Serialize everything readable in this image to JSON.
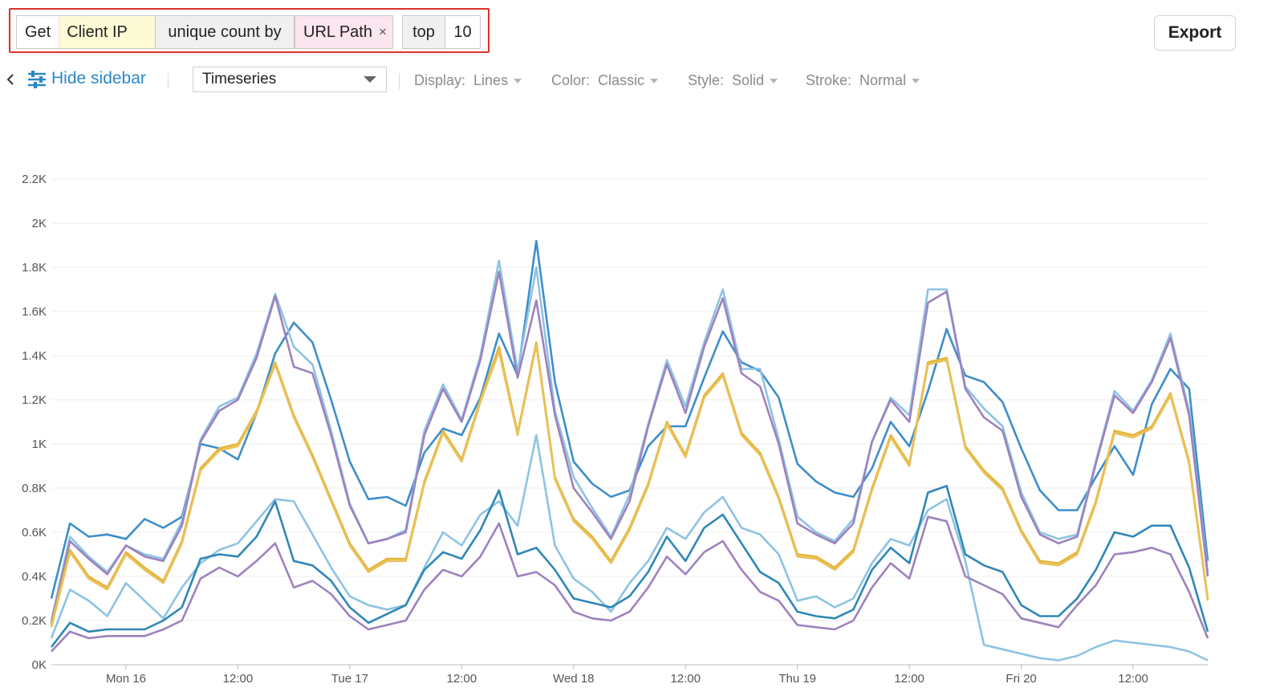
{
  "query": {
    "get_label": "Get",
    "get_value": "Client IP",
    "unique_label": "unique count by",
    "group_by_value": "URL Path",
    "remove_symbol": "×",
    "top_label": "top",
    "top_value": "10"
  },
  "export_label": "Export",
  "toolbar": {
    "hide_sidebar_label": "Hide sidebar",
    "chart_type": "Timeseries",
    "display_label": "Display:",
    "display_value": "Lines",
    "color_label": "Color:",
    "color_value": "Classic",
    "style_label": "Style:",
    "style_value": "Solid",
    "stroke_label": "Stroke:",
    "stroke_value": "Normal"
  },
  "chart_data": {
    "type": "line",
    "ylim": [
      0,
      2200
    ],
    "y_ticks": [
      0,
      200,
      400,
      600,
      800,
      1000,
      1200,
      1400,
      1600,
      1800,
      2000,
      2200
    ],
    "y_tick_labels": [
      "0K",
      "0.2K",
      "0.4K",
      "0.6K",
      "0.8K",
      "1K",
      "1.2K",
      "1.4K",
      "1.6K",
      "1.8K",
      "2K",
      "2.2K"
    ],
    "x_tick_labels": [
      "Mon 16",
      "12:00",
      "Tue 17",
      "12:00",
      "Wed 18",
      "12:00",
      "Thu 19",
      "12:00",
      "Fri 20",
      "12:00"
    ],
    "x_tick_positions": [
      4,
      10,
      16,
      22,
      28,
      34,
      40,
      46,
      52,
      58
    ],
    "grid": true,
    "series": [
      {
        "name": "s1",
        "color": "#3d8ec9",
        "values": [
          300,
          640,
          580,
          590,
          570,
          660,
          620,
          670,
          1000,
          980,
          930,
          1140,
          1410,
          1550,
          1460,
          1200,
          920,
          750,
          760,
          720,
          960,
          1070,
          1040,
          1210,
          1500,
          1310,
          1920,
          1280,
          920,
          820,
          760,
          790,
          990,
          1080,
          1080,
          1300,
          1510,
          1370,
          1330,
          1210,
          910,
          830,
          780,
          760,
          890,
          1100,
          990,
          1240,
          1520,
          1310,
          1280,
          1190,
          980,
          790,
          700,
          700,
          850,
          990,
          860,
          1180,
          1340,
          1250,
          470
        ]
      },
      {
        "name": "s2",
        "color": "#8dc3e3",
        "values": [
          200,
          580,
          490,
          420,
          540,
          500,
          480,
          650,
          1020,
          1170,
          1210,
          1410,
          1680,
          1440,
          1360,
          1060,
          730,
          550,
          570,
          610,
          1060,
          1270,
          1110,
          1400,
          1830,
          1330,
          1800,
          1150,
          850,
          710,
          580,
          770,
          1090,
          1380,
          1170,
          1460,
          1700,
          1340,
          1340,
          1020,
          670,
          600,
          560,
          660,
          1010,
          1210,
          1130,
          1700,
          1700,
          1260,
          1160,
          1080,
          780,
          600,
          570,
          590,
          920,
          1240,
          1150,
          1290,
          1500,
          1150,
          420
        ]
      },
      {
        "name": "s3",
        "color": "#9d82bd",
        "values": [
          190,
          560,
          480,
          410,
          540,
          490,
          470,
          630,
          1010,
          1150,
          1200,
          1390,
          1670,
          1350,
          1320,
          1040,
          720,
          550,
          570,
          600,
          1040,
          1250,
          1100,
          1380,
          1780,
          1300,
          1650,
          1130,
          800,
          690,
          570,
          740,
          1080,
          1360,
          1140,
          1440,
          1660,
          1320,
          1260,
          1000,
          640,
          590,
          550,
          640,
          1010,
          1200,
          1100,
          1640,
          1690,
          1250,
          1120,
          1060,
          760,
          590,
          550,
          580,
          910,
          1220,
          1140,
          1280,
          1480,
          1130,
          400
        ]
      },
      {
        "name": "s4",
        "color": "#e5b53a",
        "values": [
          180,
          520,
          400,
          350,
          510,
          440,
          380,
          560,
          890,
          980,
          1000,
          1150,
          1370,
          1130,
          950,
          750,
          550,
          430,
          480,
          480,
          830,
          1060,
          930,
          1200,
          1440,
          1050,
          1460,
          850,
          660,
          580,
          470,
          620,
          820,
          1100,
          950,
          1220,
          1320,
          1050,
          960,
          760,
          500,
          490,
          440,
          520,
          800,
          1040,
          910,
          1370,
          1390,
          990,
          880,
          800,
          610,
          470,
          460,
          510,
          740,
          1060,
          1040,
          1080,
          1230,
          920,
          300
        ]
      },
      {
        "name": "s5",
        "color": "#e8c15a",
        "values": [
          170,
          510,
          390,
          340,
          500,
          430,
          370,
          550,
          880,
          970,
          990,
          1140,
          1360,
          1120,
          940,
          740,
          540,
          420,
          470,
          470,
          820,
          1050,
          920,
          1190,
          1420,
          1040,
          1450,
          840,
          650,
          570,
          460,
          610,
          810,
          1090,
          940,
          1210,
          1310,
          1040,
          950,
          750,
          490,
          480,
          430,
          510,
          790,
          1030,
          900,
          1360,
          1380,
          980,
          870,
          790,
          600,
          460,
          450,
          500,
          730,
          1050,
          1030,
          1070,
          1220,
          910,
          290
        ]
      },
      {
        "name": "s6",
        "color": "#8dc3e3",
        "values": [
          120,
          340,
          290,
          220,
          370,
          290,
          210,
          350,
          460,
          520,
          550,
          650,
          750,
          740,
          590,
          440,
          310,
          270,
          250,
          270,
          440,
          600,
          540,
          680,
          740,
          630,
          1040,
          540,
          390,
          330,
          240,
          370,
          470,
          620,
          570,
          690,
          760,
          620,
          590,
          500,
          290,
          310,
          260,
          300,
          460,
          570,
          540,
          700,
          750,
          470,
          90,
          70,
          50,
          30,
          20,
          40,
          80,
          110,
          100,
          90,
          80,
          60,
          20
        ]
      },
      {
        "name": "s7",
        "color": "#2f87b5",
        "values": [
          80,
          190,
          150,
          160,
          160,
          160,
          200,
          260,
          480,
          500,
          490,
          580,
          740,
          470,
          450,
          380,
          260,
          190,
          230,
          270,
          430,
          510,
          480,
          610,
          790,
          500,
          530,
          430,
          300,
          280,
          260,
          310,
          420,
          580,
          470,
          620,
          680,
          550,
          420,
          370,
          240,
          220,
          210,
          250,
          430,
          530,
          460,
          780,
          810,
          500,
          450,
          420,
          270,
          220,
          220,
          300,
          430,
          600,
          580,
          630,
          630,
          440,
          150
        ]
      },
      {
        "name": "s8",
        "color": "#9d82bd",
        "values": [
          60,
          150,
          120,
          130,
          130,
          130,
          160,
          200,
          390,
          440,
          400,
          470,
          550,
          350,
          380,
          320,
          220,
          160,
          180,
          200,
          340,
          430,
          400,
          490,
          640,
          400,
          420,
          360,
          240,
          210,
          200,
          240,
          350,
          490,
          410,
          510,
          560,
          430,
          330,
          290,
          180,
          170,
          160,
          200,
          350,
          460,
          390,
          670,
          650,
          400,
          360,
          320,
          210,
          190,
          170,
          270,
          360,
          500,
          510,
          530,
          500,
          330,
          120
        ]
      }
    ]
  }
}
